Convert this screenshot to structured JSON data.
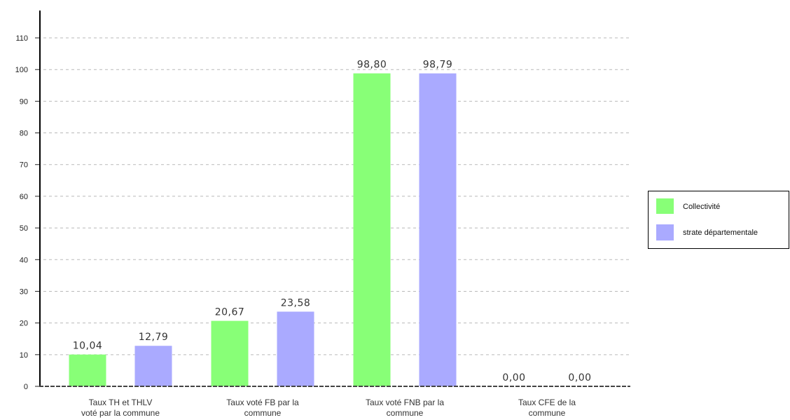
{
  "chart_data": {
    "type": "bar",
    "categories": [
      [
        "Taux TH et THLV",
        "voté par la commune"
      ],
      [
        "Taux voté FB par la",
        "commune"
      ],
      [
        "Taux voté FNB par la",
        "commune"
      ],
      [
        "Taux CFE de la",
        "commune"
      ]
    ],
    "series": [
      {
        "name": "Collectivité",
        "color": "#88ff77",
        "values": [
          10.04,
          20.67,
          98.8,
          0.0
        ]
      },
      {
        "name": "strate départementale",
        "color": "#aaaaff",
        "values": [
          12.79,
          23.58,
          98.79,
          0.0
        ]
      }
    ],
    "yticks": [
      0,
      10,
      20,
      30,
      40,
      50,
      60,
      70,
      80,
      90,
      100,
      110
    ],
    "ylim": [
      0,
      118
    ],
    "grid": true,
    "legend": "right"
  }
}
